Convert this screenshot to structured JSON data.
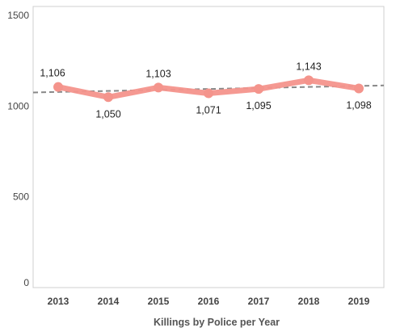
{
  "chart_data": {
    "type": "line",
    "title": "",
    "xlabel": "Killings by Police per Year",
    "ylabel": "",
    "categories": [
      "2013",
      "2014",
      "2015",
      "2016",
      "2017",
      "2018",
      "2019"
    ],
    "series": [
      {
        "values": [
          1106,
          1050,
          1103,
          1071,
          1095,
          1143,
          1098
        ],
        "data_labels": [
          "1,106",
          "1,050",
          "1,103",
          "1,071",
          "1,095",
          "1,143",
          "1,098"
        ],
        "color": "#f4948c"
      }
    ],
    "trend_line": {
      "style": "dashed",
      "color": "#888888"
    },
    "y_ticks": [
      0,
      500,
      1000,
      1500
    ],
    "y_tick_labels": [
      "0",
      "500",
      "1000",
      "1500"
    ],
    "ylim": [
      0,
      1550
    ],
    "grid": false,
    "legend": "none"
  }
}
